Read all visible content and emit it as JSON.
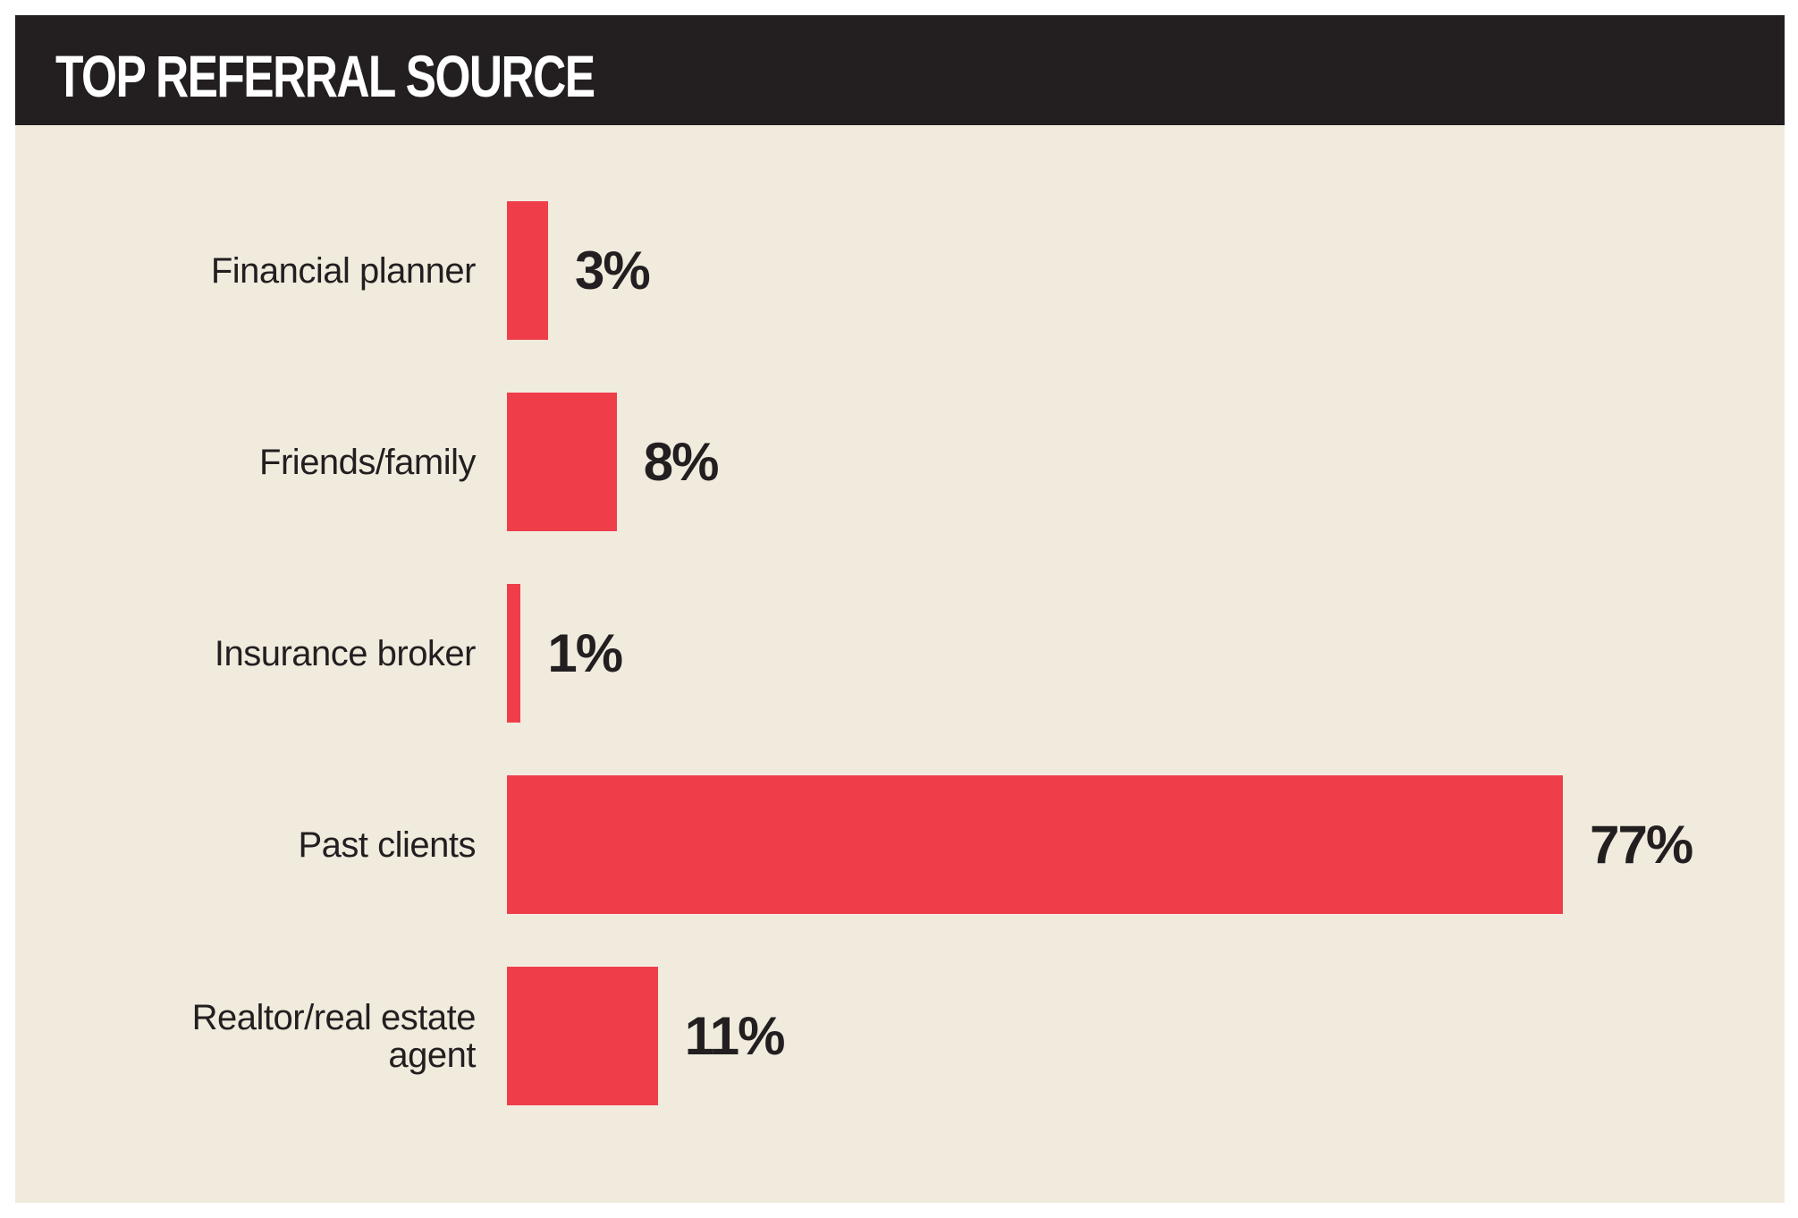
{
  "chart_data": {
    "type": "bar",
    "orientation": "horizontal",
    "title": "TOP REFERRAL SOURCE",
    "categories": [
      "Financial planner",
      "Friends/family",
      "Insurance broker",
      "Past clients",
      "Realtor/real estate agent"
    ],
    "category_lines": [
      [
        "Financial planner"
      ],
      [
        "Friends/family"
      ],
      [
        "Insurance broker"
      ],
      [
        "Past clients"
      ],
      [
        "Realtor/real estate",
        "agent"
      ]
    ],
    "values": [
      3,
      8,
      1,
      77,
      11
    ],
    "value_labels": [
      "3%",
      "8%",
      "1%",
      "77%",
      "11%"
    ],
    "unit": "%",
    "xlabel": "",
    "ylabel": "",
    "grid": false,
    "colors": {
      "bar": "#ef3e4a",
      "header": "#231f20",
      "background": "#f1ebde",
      "text": "#231f20"
    }
  }
}
